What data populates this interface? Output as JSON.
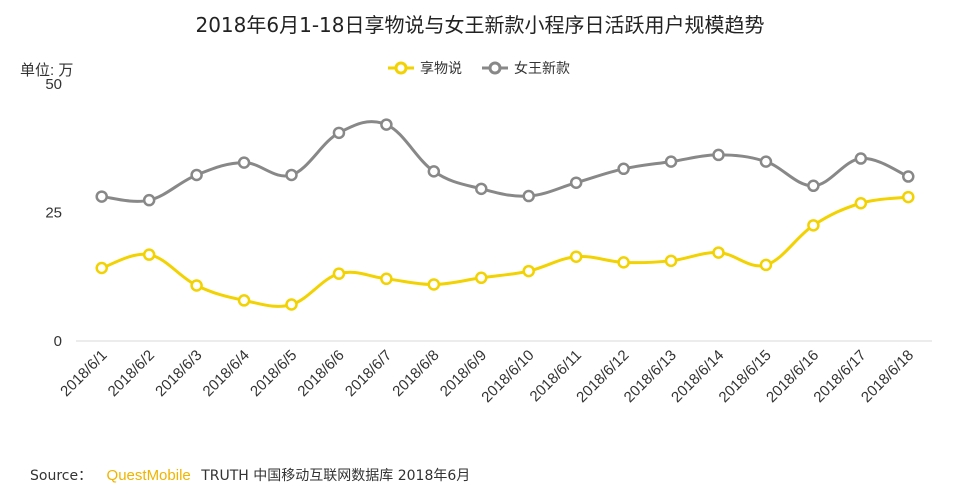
{
  "chart_data": {
    "type": "line",
    "title": "2018年6月1-18日享物说与女王新款小程序日活跃用户规模趋势",
    "unit_label": "单位: 万",
    "ylim": [
      0,
      50
    ],
    "y_ticks": [
      "0",
      "25",
      "50"
    ],
    "y_tick_values": [
      0,
      25,
      50
    ],
    "categories": [
      "2018/6/1",
      "2018/6/2",
      "2018/6/3",
      "2018/6/4",
      "2018/6/5",
      "2018/6/6",
      "2018/6/7",
      "2018/6/8",
      "2018/6/9",
      "2018/6/10",
      "2018/6/11",
      "2018/6/12",
      "2018/6/13",
      "2018/6/14",
      "2018/6/15",
      "2018/6/16",
      "2018/6/17",
      "2018/6/18"
    ],
    "series": [
      {
        "name": "享物说",
        "color": "#f2d200",
        "values": [
          14.2,
          16.8,
          10.8,
          7.9,
          7.1,
          13.1,
          12.1,
          11.0,
          12.3,
          13.6,
          16.4,
          15.3,
          15.6,
          17.2,
          14.8,
          22.5,
          26.8,
          28.0
        ]
      },
      {
        "name": "女王新款",
        "color": "#888888",
        "values": [
          28.1,
          27.4,
          32.3,
          34.7,
          32.3,
          40.5,
          42.1,
          33.0,
          29.6,
          28.2,
          30.8,
          33.5,
          34.9,
          36.2,
          34.9,
          30.2,
          35.5,
          32.0
        ]
      }
    ],
    "legend_position": "top-center"
  },
  "source": {
    "prefix": "Source：",
    "brand": "QuestMobile",
    "suffix": "TRUTH 中国移动互联网数据库 2018年6月"
  }
}
